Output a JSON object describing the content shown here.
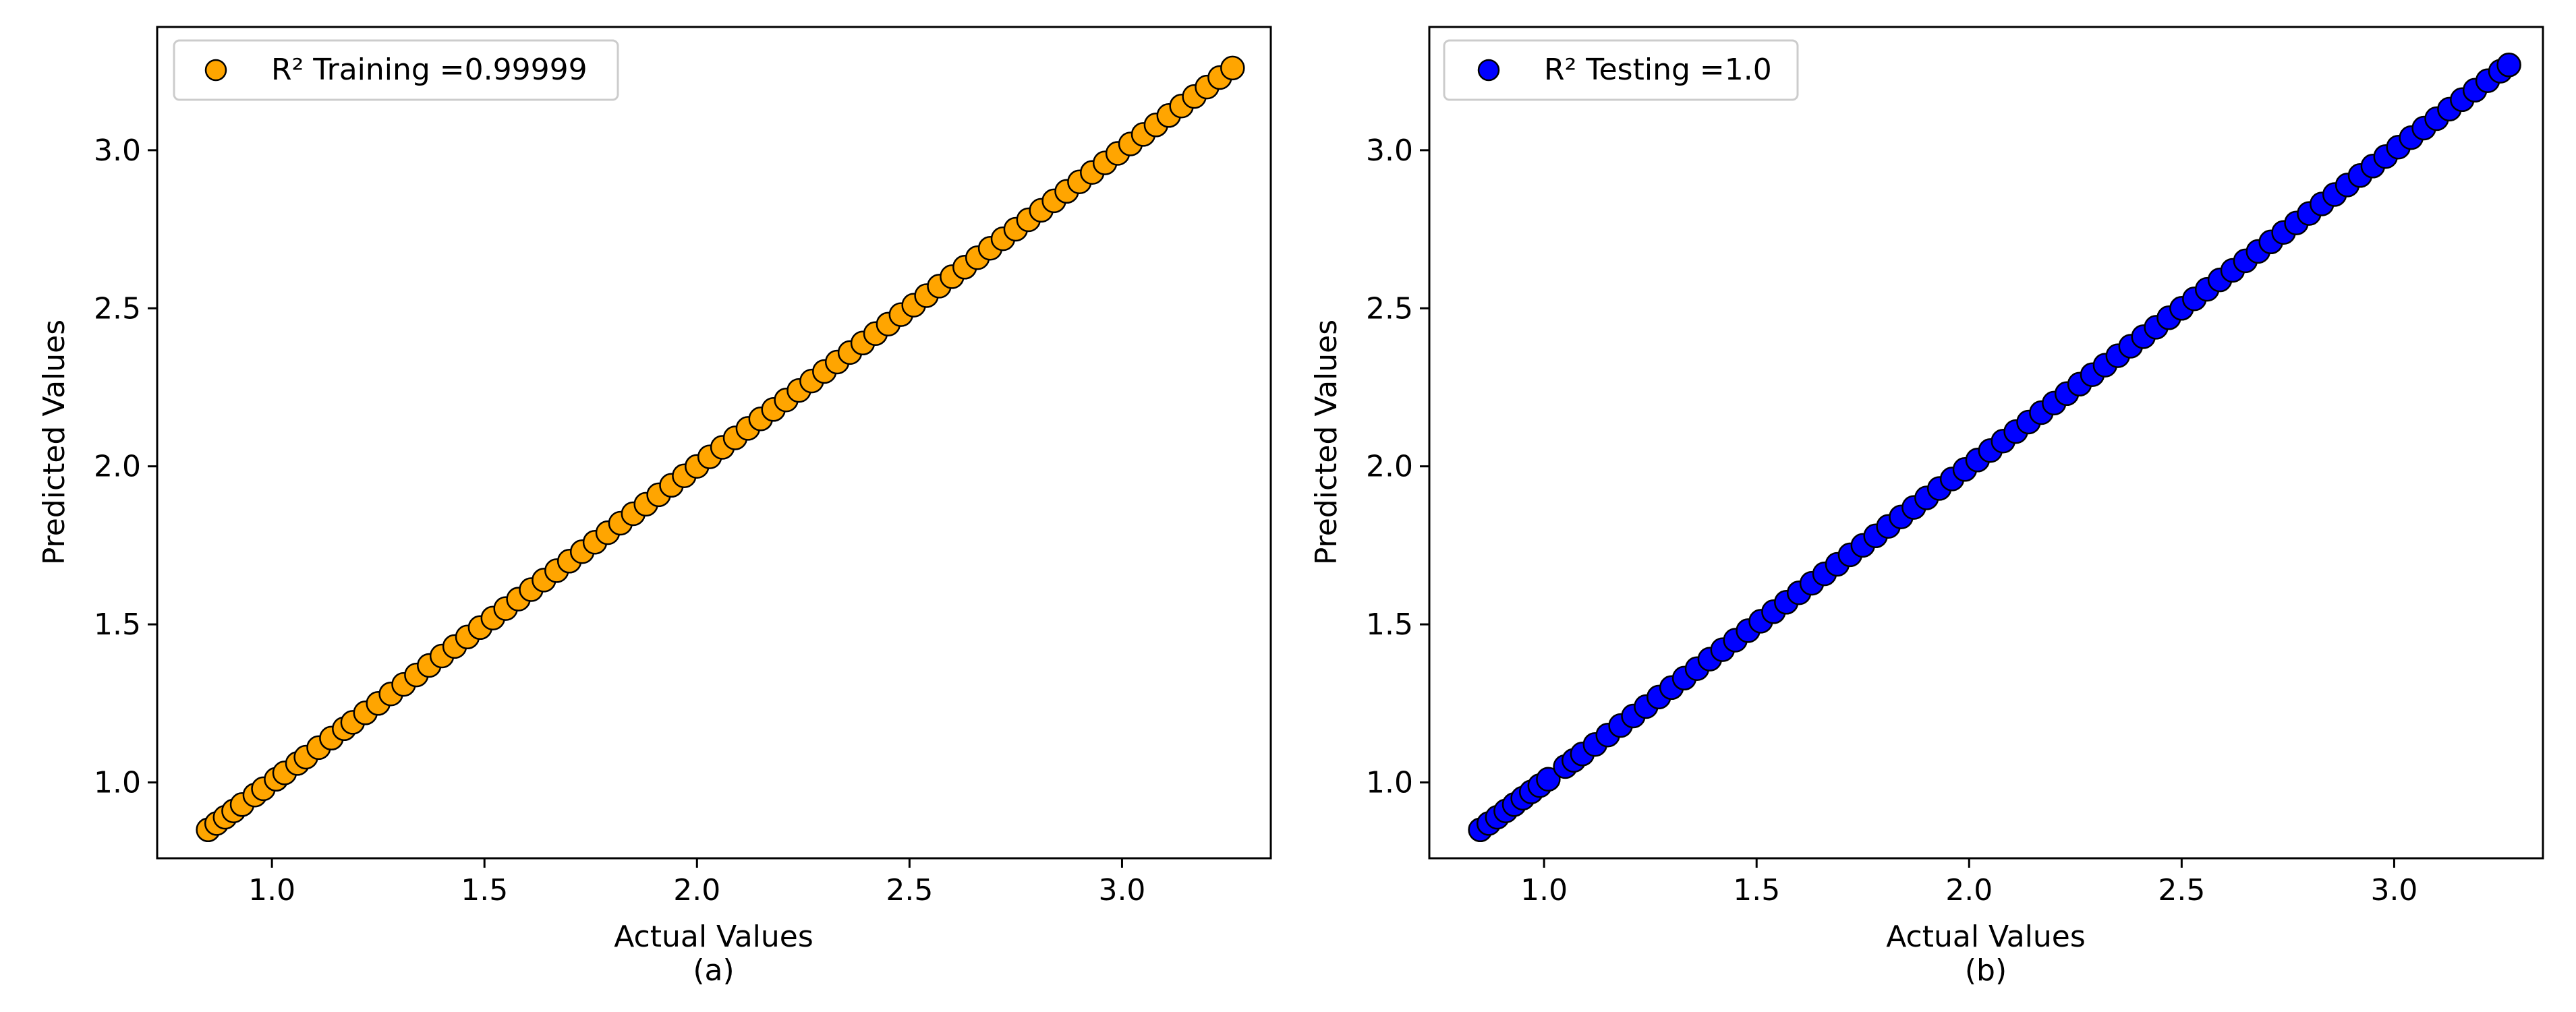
{
  "chart_data": [
    {
      "type": "scatter",
      "panel_label": "(a)",
      "xlabel": "Actual Values",
      "ylabel": "Predicted Values",
      "xlim": [
        0.73,
        3.35
      ],
      "ylim": [
        0.76,
        3.39
      ],
      "xticks": [
        1.0,
        1.5,
        2.0,
        2.5,
        3.0
      ],
      "yticks": [
        1.0,
        1.5,
        2.0,
        2.5,
        3.0
      ],
      "xtick_labels": [
        "1.0",
        "1.5",
        "2.0",
        "2.5",
        "3.0"
      ],
      "ytick_labels": [
        "1.0",
        "1.5",
        "2.0",
        "2.5",
        "3.0"
      ],
      "grid": false,
      "legend_position": "upper-left",
      "marker_color": "#ffa500",
      "marker_edge_color": "#000000",
      "series": [
        {
          "name": "R² Training =0.99999",
          "x": [
            0.85,
            0.87,
            0.89,
            0.91,
            0.93,
            0.96,
            0.98,
            1.01,
            1.03,
            1.06,
            1.08,
            1.11,
            1.14,
            1.17,
            1.19,
            1.22,
            1.25,
            1.28,
            1.31,
            1.34,
            1.37,
            1.4,
            1.43,
            1.46,
            1.49,
            1.52,
            1.55,
            1.58,
            1.61,
            1.64,
            1.67,
            1.7,
            1.73,
            1.76,
            1.79,
            1.82,
            1.85,
            1.88,
            1.91,
            1.94,
            1.97,
            2.0,
            2.03,
            2.06,
            2.09,
            2.12,
            2.15,
            2.18,
            2.21,
            2.24,
            2.27,
            2.3,
            2.33,
            2.36,
            2.39,
            2.42,
            2.45,
            2.48,
            2.51,
            2.54,
            2.57,
            2.6,
            2.63,
            2.66,
            2.69,
            2.72,
            2.75,
            2.78,
            2.81,
            2.84,
            2.87,
            2.9,
            2.93,
            2.96,
            2.99,
            3.02,
            3.05,
            3.08,
            3.11,
            3.14,
            3.17,
            3.2,
            3.23,
            3.26
          ],
          "y": [
            0.85,
            0.87,
            0.89,
            0.91,
            0.93,
            0.96,
            0.98,
            1.01,
            1.03,
            1.06,
            1.08,
            1.11,
            1.14,
            1.17,
            1.19,
            1.22,
            1.25,
            1.28,
            1.31,
            1.34,
            1.37,
            1.4,
            1.43,
            1.46,
            1.49,
            1.52,
            1.55,
            1.58,
            1.61,
            1.64,
            1.67,
            1.7,
            1.73,
            1.76,
            1.79,
            1.82,
            1.85,
            1.88,
            1.91,
            1.94,
            1.97,
            2.0,
            2.03,
            2.06,
            2.09,
            2.12,
            2.15,
            2.18,
            2.21,
            2.24,
            2.27,
            2.3,
            2.33,
            2.36,
            2.39,
            2.42,
            2.45,
            2.48,
            2.51,
            2.54,
            2.57,
            2.6,
            2.63,
            2.66,
            2.69,
            2.72,
            2.75,
            2.78,
            2.81,
            2.84,
            2.87,
            2.9,
            2.93,
            2.96,
            2.99,
            3.02,
            3.05,
            3.08,
            3.11,
            3.14,
            3.17,
            3.2,
            3.23,
            3.26
          ]
        }
      ]
    },
    {
      "type": "scatter",
      "panel_label": "(b)",
      "xlabel": "Actual Values",
      "ylabel": "Predicted Values",
      "xlim": [
        0.73,
        3.35
      ],
      "ylim": [
        0.76,
        3.39
      ],
      "xticks": [
        1.0,
        1.5,
        2.0,
        2.5,
        3.0
      ],
      "yticks": [
        1.0,
        1.5,
        2.0,
        2.5,
        3.0
      ],
      "xtick_labels": [
        "1.0",
        "1.5",
        "2.0",
        "2.5",
        "3.0"
      ],
      "ytick_labels": [
        "1.0",
        "1.5",
        "2.0",
        "2.5",
        "3.0"
      ],
      "grid": false,
      "legend_position": "upper-left",
      "marker_color": "#0000ff",
      "marker_edge_color": "#000000",
      "series": [
        {
          "name": "R² Testing =1.0",
          "x": [
            0.85,
            0.87,
            0.89,
            0.91,
            0.93,
            0.95,
            0.97,
            0.99,
            1.01,
            1.05,
            1.07,
            1.09,
            1.12,
            1.15,
            1.18,
            1.21,
            1.24,
            1.27,
            1.3,
            1.33,
            1.36,
            1.39,
            1.42,
            1.45,
            1.48,
            1.51,
            1.54,
            1.57,
            1.6,
            1.63,
            1.66,
            1.69,
            1.72,
            1.75,
            1.78,
            1.81,
            1.84,
            1.87,
            1.9,
            1.93,
            1.96,
            1.99,
            2.02,
            2.05,
            2.08,
            2.11,
            2.14,
            2.17,
            2.2,
            2.23,
            2.26,
            2.29,
            2.32,
            2.35,
            2.38,
            2.41,
            2.44,
            2.47,
            2.5,
            2.53,
            2.56,
            2.59,
            2.62,
            2.65,
            2.68,
            2.71,
            2.74,
            2.77,
            2.8,
            2.83,
            2.86,
            2.89,
            2.92,
            2.95,
            2.98,
            3.01,
            3.04,
            3.07,
            3.1,
            3.13,
            3.16,
            3.19,
            3.22,
            3.25,
            3.27
          ],
          "y": [
            0.85,
            0.87,
            0.89,
            0.91,
            0.93,
            0.95,
            0.97,
            0.99,
            1.01,
            1.05,
            1.07,
            1.09,
            1.12,
            1.15,
            1.18,
            1.21,
            1.24,
            1.27,
            1.3,
            1.33,
            1.36,
            1.39,
            1.42,
            1.45,
            1.48,
            1.51,
            1.54,
            1.57,
            1.6,
            1.63,
            1.66,
            1.69,
            1.72,
            1.75,
            1.78,
            1.81,
            1.84,
            1.87,
            1.9,
            1.93,
            1.96,
            1.99,
            2.02,
            2.05,
            2.08,
            2.11,
            2.14,
            2.17,
            2.2,
            2.23,
            2.26,
            2.29,
            2.32,
            2.35,
            2.38,
            2.41,
            2.44,
            2.47,
            2.5,
            2.53,
            2.56,
            2.59,
            2.62,
            2.65,
            2.68,
            2.71,
            2.74,
            2.77,
            2.8,
            2.83,
            2.86,
            2.89,
            2.92,
            2.95,
            2.98,
            3.01,
            3.04,
            3.07,
            3.1,
            3.13,
            3.16,
            3.19,
            3.22,
            3.25,
            3.27
          ]
        }
      ]
    }
  ]
}
